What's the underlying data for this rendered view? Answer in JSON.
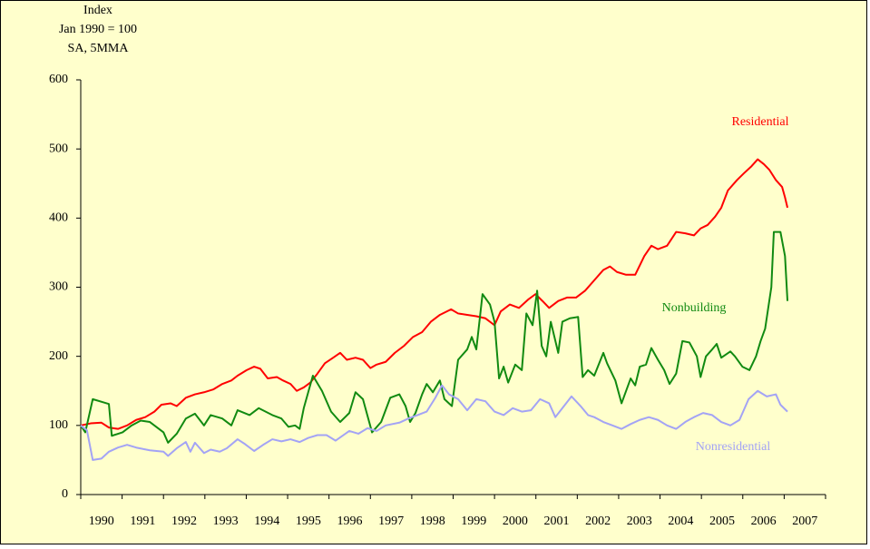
{
  "chart_data": {
    "type": "line",
    "y_axis_label": [
      "Index",
      "Jan 1990 = 100",
      "SA, 5MMA"
    ],
    "xlim": [
      1990,
      2008
    ],
    "xticks": [
      1990,
      1991,
      1992,
      1993,
      1994,
      1995,
      1996,
      1997,
      1998,
      1999,
      2000,
      2001,
      2002,
      2003,
      2004,
      2005,
      2006,
      2007
    ],
    "ylim": [
      0,
      600
    ],
    "yticks": [
      0,
      100,
      200,
      300,
      400,
      500,
      600
    ],
    "grid": false,
    "series": [
      {
        "name": "Residential",
        "color": "#ff0000",
        "x": [
          1990,
          1990.24,
          1990.5,
          1990.68,
          1990.9,
          1991.12,
          1991.34,
          1991.56,
          1991.78,
          1991.95,
          1992.17,
          1992.32,
          1992.54,
          1992.76,
          1992.98,
          1993.2,
          1993.42,
          1993.64,
          1993.79,
          1994.01,
          1994.19,
          1994.34,
          1994.52,
          1994.74,
          1994.89,
          1995.07,
          1995.22,
          1995.39,
          1995.55,
          1995.72,
          1995.9,
          1996.1,
          1996.27,
          1996.43,
          1996.64,
          1996.82,
          1997,
          1997.15,
          1997.37,
          1997.59,
          1997.81,
          1998.03,
          1998.25,
          1998.46,
          1998.68,
          1998.95,
          1999.12,
          1999.34,
          1999.56,
          1999.78,
          2000,
          2000.15,
          2000.37,
          2000.59,
          2000.81,
          2000.99,
          2001.16,
          2001.32,
          2001.54,
          2001.75,
          2001.97,
          2002.19,
          2002.41,
          2002.63,
          2002.79,
          2002.96,
          2003.18,
          2003.4,
          2003.62,
          2003.79,
          2003.95,
          2004.17,
          2004.39,
          2004.61,
          2004.82,
          2004.98,
          2005.15,
          2005.33,
          2005.48,
          2005.64,
          2005.86,
          2006.03,
          2006.21,
          2006.36,
          2006.51,
          2006.64,
          2006.8,
          2006.95,
          2007.02,
          2007.08
        ],
        "values": [
          100,
          103,
          104,
          97,
          95,
          100,
          108,
          112,
          120,
          130,
          132,
          128,
          140,
          145,
          148,
          152,
          160,
          165,
          172,
          180,
          185,
          182,
          168,
          170,
          165,
          160,
          150,
          155,
          162,
          175,
          190,
          198,
          205,
          195,
          198,
          195,
          183,
          188,
          192,
          205,
          215,
          228,
          235,
          250,
          260,
          268,
          262,
          260,
          258,
          255,
          245,
          265,
          275,
          270,
          282,
          290,
          280,
          270,
          280,
          285,
          285,
          295,
          310,
          325,
          330,
          322,
          318,
          318,
          345,
          360,
          355,
          360,
          380,
          378,
          375,
          385,
          390,
          402,
          415,
          440,
          455,
          465,
          475,
          485,
          478,
          470,
          455,
          445,
          430,
          415
        ]
      },
      {
        "name": "Nonbuilding",
        "color": "#118a11",
        "x": [
          1990,
          1990.11,
          1990.29,
          1990.57,
          1990.68,
          1990.75,
          1991.01,
          1991.23,
          1991.45,
          1991.67,
          1992,
          1992.11,
          1992.32,
          1992.54,
          1992.76,
          1992.98,
          1993.14,
          1993.42,
          1993.64,
          1993.79,
          1994.08,
          1994.3,
          1994.63,
          1994.85,
          1995.02,
          1995.18,
          1995.29,
          1995.39,
          1995.61,
          1995.83,
          1996.05,
          1996.27,
          1996.49,
          1996.64,
          1996.82,
          1997.04,
          1997.26,
          1997.48,
          1997.7,
          1997.85,
          1997.96,
          1998.09,
          1998.25,
          1998.36,
          1998.51,
          1998.68,
          1998.79,
          1998.97,
          1999.12,
          1999.34,
          1999.45,
          1999.56,
          1999.71,
          1999.89,
          2000,
          2000.11,
          2000.22,
          2000.33,
          2000.5,
          2000.66,
          2000.77,
          2000.92,
          2001.03,
          2001.14,
          2001.25,
          2001.36,
          2001.54,
          2001.64,
          2001.82,
          2002.02,
          2002.13,
          2002.26,
          2002.41,
          2002.63,
          2002.72,
          2002.92,
          2003.07,
          2003.29,
          2003.4,
          2003.51,
          2003.66,
          2003.79,
          2003.95,
          2004.1,
          2004.23,
          2004.39,
          2004.54,
          2004.71,
          2004.89,
          2004.98,
          2005.11,
          2005.26,
          2005.37,
          2005.48,
          2005.7,
          2005.81,
          2005.99,
          2006.16,
          2006.32,
          2006.43,
          2006.54,
          2006.69,
          2006.75,
          2006.91,
          2007.02,
          2007.08
        ],
        "values": [
          100,
          90,
          138,
          133,
          131,
          85,
          90,
          100,
          107,
          105,
          90,
          75,
          88,
          110,
          117,
          100,
          115,
          110,
          100,
          122,
          115,
          125,
          115,
          110,
          98,
          100,
          95,
          125,
          172,
          150,
          120,
          105,
          118,
          148,
          138,
          90,
          105,
          140,
          145,
          128,
          105,
          118,
          145,
          160,
          148,
          165,
          138,
          128,
          195,
          210,
          228,
          210,
          290,
          275,
          250,
          168,
          185,
          162,
          188,
          180,
          262,
          245,
          295,
          215,
          200,
          250,
          205,
          250,
          255,
          257,
          170,
          180,
          172,
          205,
          190,
          165,
          132,
          168,
          158,
          185,
          188,
          212,
          195,
          180,
          160,
          175,
          222,
          220,
          200,
          170,
          200,
          210,
          218,
          198,
          207,
          200,
          185,
          180,
          200,
          222,
          240,
          300,
          380,
          380,
          345,
          280
        ]
      },
      {
        "name": "Nonresidential",
        "color": "#a3a3f5",
        "x": [
          1990,
          1990.15,
          1990.29,
          1990.5,
          1990.68,
          1990.9,
          1991.12,
          1991.34,
          1991.67,
          1992,
          1992.11,
          1992.32,
          1992.54,
          1992.65,
          1992.76,
          1992.98,
          1993.14,
          1993.36,
          1993.53,
          1993.79,
          1993.97,
          1994.19,
          1994.41,
          1994.63,
          1994.85,
          1995.07,
          1995.29,
          1995.5,
          1995.72,
          1995.94,
          1996.16,
          1996.49,
          1996.71,
          1996.93,
          1997.15,
          1997.37,
          1997.7,
          1997.92,
          1998.14,
          1998.36,
          1998.57,
          1998.73,
          1998.9,
          1999.12,
          1999.34,
          1999.56,
          1999.78,
          2000,
          2000.22,
          2000.44,
          2000.66,
          2000.88,
          2001.1,
          2001.32,
          2001.47,
          2001.64,
          2001.86,
          2002.08,
          2002.26,
          2002.41,
          2002.63,
          2002.85,
          2003.07,
          2003.29,
          2003.51,
          2003.73,
          2003.95,
          2004.17,
          2004.39,
          2004.61,
          2004.82,
          2005.04,
          2005.26,
          2005.48,
          2005.7,
          2005.92,
          2006.14,
          2006.36,
          2006.58,
          2006.8,
          2006.91,
          2007.08
        ],
        "values": [
          100,
          93,
          50,
          52,
          62,
          68,
          72,
          68,
          64,
          62,
          56,
          67,
          76,
          62,
          75,
          60,
          65,
          62,
          67,
          80,
          73,
          63,
          72,
          80,
          77,
          80,
          76,
          82,
          86,
          86,
          78,
          92,
          88,
          96,
          92,
          100,
          104,
          110,
          115,
          120,
          140,
          158,
          145,
          138,
          122,
          138,
          135,
          120,
          115,
          125,
          120,
          122,
          138,
          132,
          112,
          125,
          142,
          128,
          115,
          112,
          105,
          100,
          95,
          102,
          108,
          112,
          108,
          100,
          95,
          105,
          112,
          118,
          115,
          105,
          100,
          108,
          138,
          150,
          142,
          145,
          130,
          120
        ]
      }
    ]
  }
}
